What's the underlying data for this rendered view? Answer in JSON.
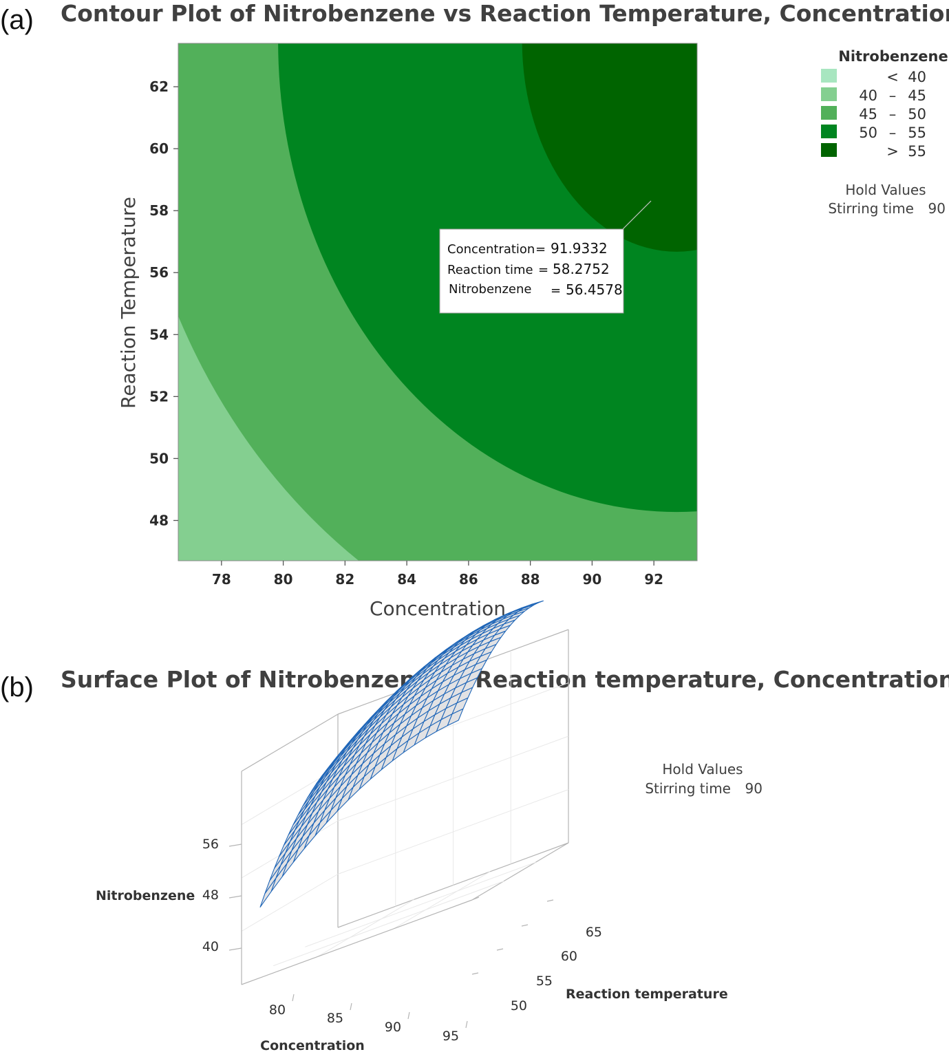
{
  "panel_a_label": "(a)",
  "panel_b_label": "(b)",
  "chart_data": [
    {
      "type": "contour",
      "title": "Contour Plot of Nitrobenzene vs Reaction Temperature, Concentration",
      "xlabel": "Concentration",
      "ylabel": "Reaction Temperature",
      "xlim": [
        76.6,
        93.4
      ],
      "ylim": [
        46.7,
        63.4
      ],
      "xticks": [
        78,
        80,
        82,
        84,
        86,
        88,
        90,
        92
      ],
      "yticks": [
        48,
        50,
        52,
        54,
        56,
        58,
        60,
        62
      ],
      "legend": {
        "title": "Nitrobenzene",
        "placement": "right",
        "entries": [
          {
            "a": "",
            "op": "<",
            "b": "40",
            "color": "#a8e6c0"
          },
          {
            "a": "40",
            "op": "–",
            "b": "45",
            "color": "#84cf90"
          },
          {
            "a": "45",
            "op": "–",
            "b": "50",
            "color": "#52b05a"
          },
          {
            "a": "50",
            "op": "–",
            "b": "55",
            "color": "#008520"
          },
          {
            "a": "",
            "op": ">",
            "b": "55",
            "color": "#006400"
          }
        ]
      },
      "optimum": {
        "x": 91.9332,
        "y": 58.2752
      },
      "annotation": {
        "line1_label": "Concentration",
        "line1_eq": "=",
        "line1_value": "91.9332",
        "line2_label": "Reaction time",
        "line2_eq": "=",
        "line2_value": "58.2752",
        "line3_label": "Nitrobenzene",
        "line3_eq": "=",
        "line3_value": "56.4578"
      },
      "hold_values": {
        "title": "Hold Values",
        "label": "Stirring time",
        "value": "90"
      }
    },
    {
      "type": "surface",
      "title": "Surface Plot of Nitrobenzene vs Reaction temperature, Concentration",
      "xlabel": "Concentration",
      "ylabel": "Reaction temperature",
      "zlabel": "Nitrobenzene",
      "xticks": [
        "80",
        "85",
        "90",
        "95"
      ],
      "yticks": [
        "50",
        "55",
        "60",
        "65"
      ],
      "zticks": [
        "40",
        "48",
        "56"
      ],
      "hold_values": {
        "title": "Hold Values",
        "label": "Stirring time",
        "value": "90"
      },
      "colors": {
        "surface": "#e2e2e4",
        "mesh": "#1f66b8",
        "box": "#b4b4b4"
      }
    }
  ]
}
